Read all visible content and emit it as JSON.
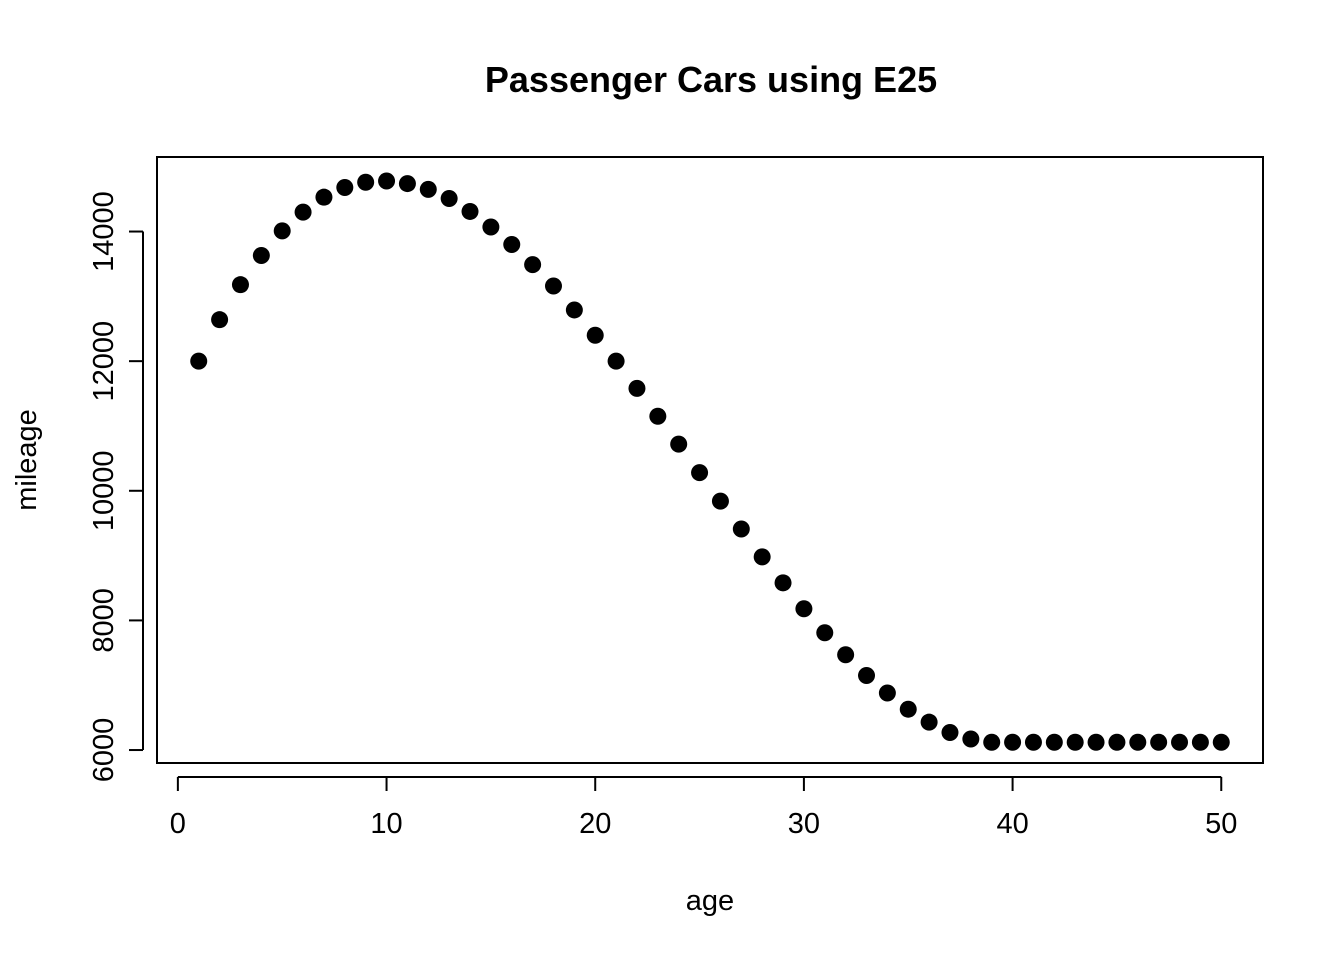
{
  "chart_data": {
    "type": "scatter",
    "title": "Passenger Cars using E25",
    "xlabel": "age",
    "ylabel": "mileage",
    "xlim": [
      -1,
      52
    ],
    "ylim": [
      5800,
      15150
    ],
    "x_ticks": [
      0,
      10,
      20,
      30,
      40,
      50
    ],
    "y_ticks": [
      6000,
      8000,
      10000,
      12000,
      14000
    ],
    "marker_color": "#000000",
    "grid": false,
    "series": [
      {
        "x": [
          1,
          2,
          3,
          4,
          5,
          6,
          7,
          8,
          9,
          10,
          11,
          12,
          13,
          14,
          15,
          16,
          17,
          18,
          19,
          20,
          21,
          22,
          23,
          24,
          25,
          26,
          27,
          28,
          29,
          30,
          31,
          32,
          33,
          34,
          35,
          36,
          37,
          38,
          39,
          40,
          41,
          42,
          43,
          44,
          45,
          46,
          47,
          48,
          49,
          50
        ],
        "y": [
          12000,
          12640,
          13180,
          13630,
          14010,
          14300,
          14530,
          14680,
          14760,
          14780,
          14740,
          14650,
          14510,
          14310,
          14070,
          13800,
          13490,
          13160,
          12790,
          12400,
          12000,
          11580,
          11150,
          10720,
          10280,
          9840,
          9410,
          8980,
          8580,
          8180,
          7810,
          7470,
          7150,
          6880,
          6630,
          6430,
          6270,
          6170,
          6120,
          6120,
          6120,
          6120,
          6120,
          6120,
          6120,
          6120,
          6120,
          6120,
          6120,
          6120
        ]
      }
    ]
  }
}
